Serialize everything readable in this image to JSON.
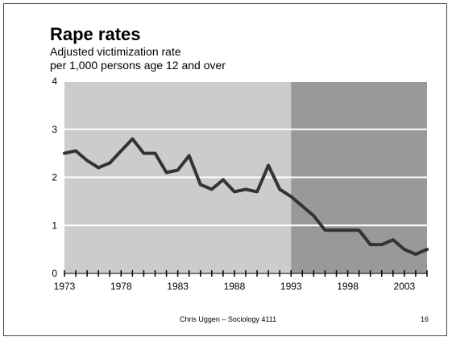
{
  "slide": {
    "footer_author": "Chris Uggen – Sociology 4111",
    "page_number": "16"
  },
  "chart_data": {
    "type": "line",
    "title": "Rape rates",
    "subtitle_line1": "Adjusted victimization rate",
    "subtitle_line2": "per 1,000 persons age 12 and over",
    "xlabel": "",
    "ylabel": "",
    "xlim": [
      1973,
      2005
    ],
    "ylim": [
      0,
      4
    ],
    "y_ticks": [
      0,
      1,
      2,
      3,
      4
    ],
    "x_tick_labels": [
      1973,
      1978,
      1983,
      1988,
      1993,
      1998,
      2003
    ],
    "grid": true,
    "shaded_regions": [
      {
        "from": 1973,
        "to": 1993,
        "color": "#cccccc"
      },
      {
        "from": 1993,
        "to": 2005,
        "color": "#999999"
      }
    ],
    "series": [
      {
        "color": "#333333",
        "points": [
          [
            1973,
            2.5
          ],
          [
            1974,
            2.55
          ],
          [
            1975,
            2.35
          ],
          [
            1976,
            2.2
          ],
          [
            1977,
            2.3
          ],
          [
            1978,
            2.55
          ],
          [
            1979,
            2.8
          ],
          [
            1980,
            2.5
          ],
          [
            1981,
            2.5
          ],
          [
            1982,
            2.1
          ],
          [
            1983,
            2.15
          ],
          [
            1984,
            2.45
          ],
          [
            1985,
            1.85
          ],
          [
            1986,
            1.75
          ],
          [
            1987,
            1.95
          ],
          [
            1988,
            1.7
          ],
          [
            1989,
            1.75
          ],
          [
            1990,
            1.7
          ],
          [
            1991,
            2.25
          ],
          [
            1992,
            1.75
          ],
          [
            1993,
            1.6
          ],
          [
            1994,
            1.4
          ],
          [
            1995,
            1.2
          ],
          [
            1996,
            0.9
          ],
          [
            1997,
            0.9
          ],
          [
            1998,
            0.9
          ],
          [
            1999,
            0.9
          ],
          [
            2000,
            0.6
          ],
          [
            2001,
            0.6
          ],
          [
            2002,
            0.7
          ],
          [
            2003,
            0.5
          ],
          [
            2004,
            0.4
          ],
          [
            2005,
            0.5
          ]
        ]
      }
    ]
  }
}
